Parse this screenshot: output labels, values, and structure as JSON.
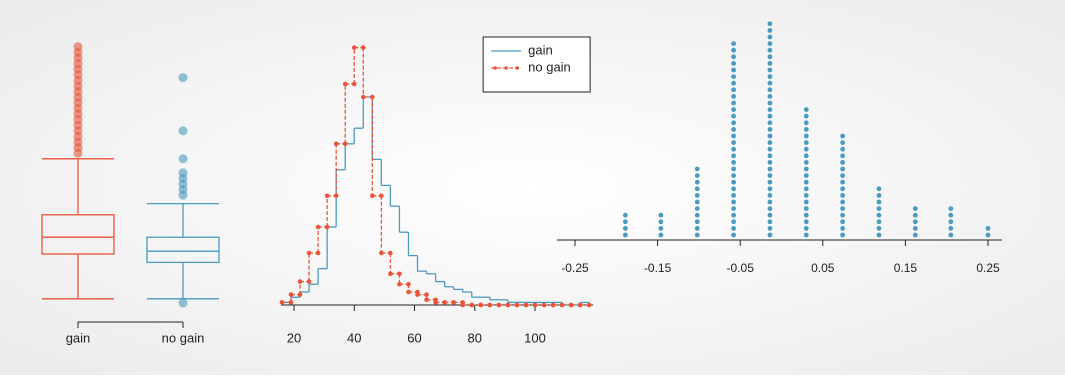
{
  "chart_data": [
    {
      "type": "box",
      "categories": [
        "gain",
        "no gain"
      ],
      "colors": [
        "#e8553a",
        "#4a9bbf"
      ],
      "ylim": [
        0,
        100
      ],
      "stats": [
        {
          "min": 4,
          "q1": 20,
          "median": 26,
          "q3": 34,
          "max": 54,
          "outliers": [
            56,
            58,
            60,
            62,
            64,
            66,
            68,
            70,
            72,
            74,
            76,
            78,
            80,
            82,
            84,
            86,
            88,
            90,
            92,
            94
          ]
        },
        {
          "min": 4,
          "q1": 17,
          "median": 21,
          "q3": 26,
          "max": 38,
          "outliers": [
            2.5,
            41,
            43,
            45,
            47,
            49,
            54,
            64,
            83
          ]
        }
      ]
    },
    {
      "type": "histogram",
      "xlim": [
        15.7,
        119.3
      ],
      "xticks": [
        20,
        40,
        60,
        80,
        100
      ],
      "ylim": [
        0,
        100
      ],
      "legend": "upper right",
      "bins": [
        16,
        19,
        22,
        25,
        28,
        31,
        34,
        37,
        40,
        43,
        46,
        49,
        52,
        55,
        58,
        61,
        64,
        67,
        70,
        73,
        76,
        79,
        82,
        85,
        88,
        91,
        94,
        97,
        100,
        103,
        106,
        109,
        112,
        115,
        118
      ],
      "series": [
        {
          "name": "gain",
          "color": "#4a9bbf",
          "values": [
            1,
            3,
            5,
            8,
            14,
            30,
            52,
            62,
            68,
            80,
            56,
            46,
            38,
            28,
            19,
            13,
            12,
            9,
            7,
            6,
            5,
            3,
            3,
            2,
            2,
            1,
            1,
            1,
            1,
            1,
            1,
            0,
            0,
            1
          ]
        },
        {
          "name": "no gain",
          "color": "#e8553a",
          "markers": true,
          "values": [
            1,
            4,
            9,
            20,
            30,
            42,
            62,
            85,
            99,
            80,
            42,
            20,
            12,
            8,
            5,
            4,
            2,
            1,
            1,
            1,
            0,
            0,
            0,
            0,
            0,
            0,
            0,
            0,
            0,
            0,
            0,
            0,
            0,
            0
          ]
        }
      ]
    },
    {
      "type": "dot",
      "color": "#4a9bbf",
      "xlim": [
        -0.272,
        0.267
      ],
      "xticks": [
        -0.25,
        -0.15,
        -0.05,
        0.05,
        0.15,
        0.25
      ],
      "x": [
        -0.189,
        -0.146,
        -0.102,
        -0.058,
        -0.014,
        0.03,
        0.074,
        0.118,
        0.162,
        0.205,
        0.25
      ],
      "counts": [
        4,
        4,
        11,
        30,
        33,
        20,
        16,
        8,
        5,
        5,
        2
      ]
    }
  ]
}
